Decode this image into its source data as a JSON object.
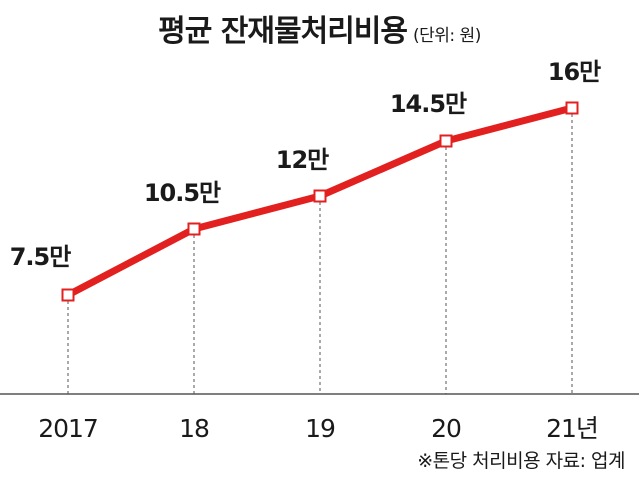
{
  "title": "평균 잔재물처리비용",
  "unit_note": "(단위: 원)",
  "source_note": "※톤당 처리비용 자료: 업계",
  "colors": {
    "line": "#e32020",
    "marker_fill": "#ffffff",
    "text": "#1a1a1a",
    "axis": "#555555"
  },
  "chart_data": {
    "type": "line",
    "title": "평균 잔재물처리비용",
    "categories": [
      "2017",
      "18",
      "19",
      "20",
      "21년"
    ],
    "series": [
      {
        "name": "",
        "values": [
          75000,
          105000,
          120000,
          145000,
          160000
        ]
      }
    ],
    "data_labels": [
      "7.5만",
      "10.5만",
      "12만",
      "14.5만",
      "16만"
    ],
    "ylim": [
      30000,
      160000
    ],
    "xlabel": "",
    "ylabel": "",
    "grid": false,
    "legend": "none"
  }
}
